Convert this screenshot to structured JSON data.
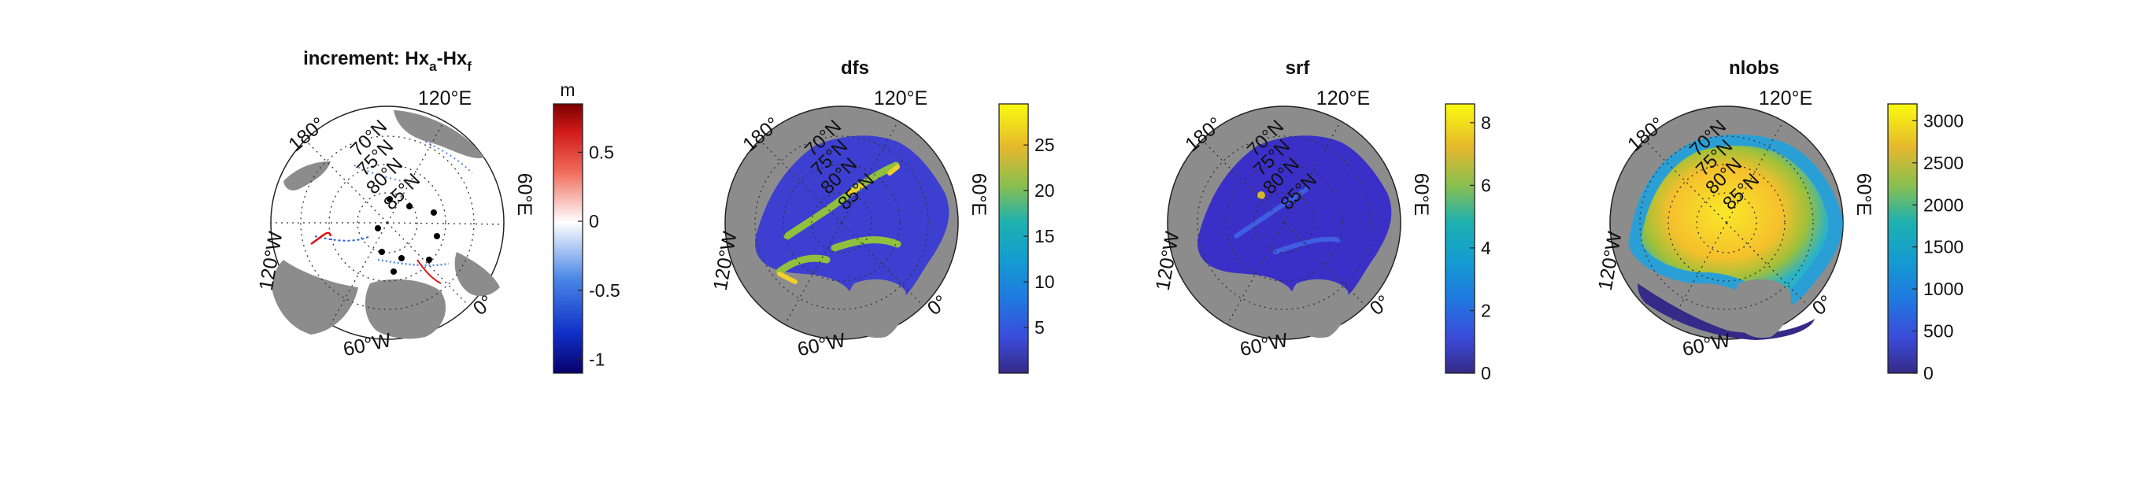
{
  "figure": {
    "panels": [
      {
        "id": "increment",
        "title_parts": [
          {
            "text": "increment: Hx",
            "baseline": "normal"
          },
          {
            "text": "a",
            "baseline": "sub"
          },
          {
            "text": "-Hx",
            "baseline": "normal"
          },
          {
            "text": "f",
            "baseline": "sub"
          }
        ],
        "colormap": "diverging-blue-white-red",
        "colorbar": {
          "unit": "m",
          "ticks": [
            "0.5",
            "0",
            "-0.5",
            "-1"
          ]
        },
        "field": "increment"
      },
      {
        "id": "dfs",
        "title_parts": [
          {
            "text": "dfs",
            "baseline": "normal"
          }
        ],
        "colormap": "parula",
        "colorbar": {
          "unit": "",
          "ticks": [
            "25",
            "20",
            "15",
            "10",
            "5"
          ]
        },
        "field": "dfs"
      },
      {
        "id": "srf",
        "title_parts": [
          {
            "text": "srf",
            "baseline": "normal"
          }
        ],
        "colormap": "parula",
        "colorbar": {
          "unit": "",
          "ticks": [
            "8",
            "6",
            "4",
            "2",
            "0"
          ]
        },
        "field": "srf"
      },
      {
        "id": "nlobs",
        "title_parts": [
          {
            "text": "nlobs",
            "baseline": "normal"
          }
        ],
        "colormap": "parula",
        "colorbar": {
          "unit": "",
          "ticks": [
            "3000",
            "2500",
            "2000",
            "1500",
            "1000",
            "500",
            "0"
          ]
        },
        "field": "nlobs"
      }
    ],
    "map_labels": {
      "lon_120e": "120°E",
      "lon_180": "180°",
      "lon_60e": "60°E",
      "lon_120w": "120°W",
      "lon_60w": "60°W",
      "lon_0": "0°",
      "lat_70": "70°N",
      "lat_75": "75°N",
      "lat_80": "80°N",
      "lat_85": "85°N"
    },
    "colors": {
      "land": "#8c8c8c",
      "ocean_background": "#ffffff",
      "parula_low": "#352a87",
      "parula_high": "#f9fb0e",
      "increment_neg": "#0000ff",
      "increment_pos": "#ff0000"
    }
  },
  "chart_data": [
    {
      "type": "heatmap",
      "title": "increment: Hxa-Hxf",
      "projection": "north polar stereographic",
      "colorbar_label": "m",
      "clim": [
        -1.1,
        0.85
      ],
      "colorbar_ticks": [
        -1,
        -0.5,
        0,
        0.5
      ]
    },
    {
      "type": "heatmap",
      "title": "dfs",
      "projection": "north polar stereographic",
      "clim": [
        0,
        29.5
      ],
      "colorbar_ticks": [
        5,
        10,
        15,
        20,
        25
      ]
    },
    {
      "type": "heatmap",
      "title": "srf",
      "projection": "north polar stereographic",
      "clim": [
        0,
        8.6
      ],
      "colorbar_ticks": [
        0,
        2,
        4,
        6,
        8
      ]
    },
    {
      "type": "heatmap",
      "title": "nlobs",
      "projection": "north polar stereographic",
      "clim": [
        0,
        3200
      ],
      "colorbar_ticks": [
        0,
        500,
        1000,
        1500,
        2000,
        2500,
        3000
      ]
    }
  ]
}
